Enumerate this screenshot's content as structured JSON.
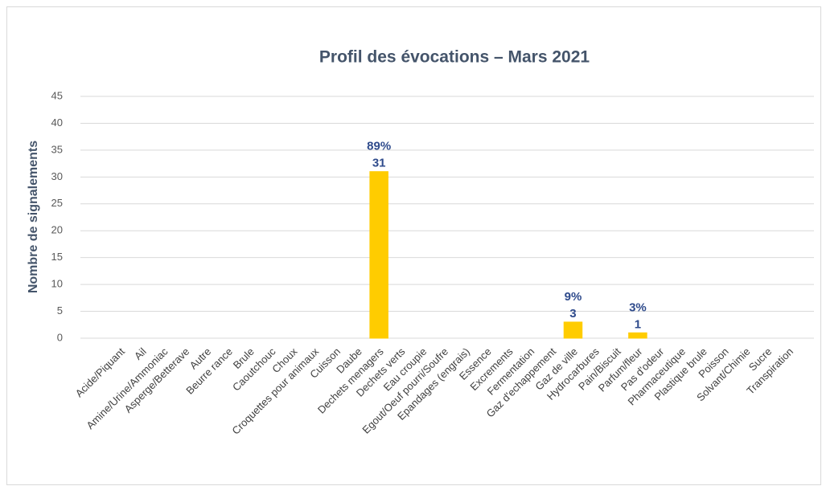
{
  "chart_data": {
    "type": "bar",
    "title": "Profil des évocations – Mars 2021",
    "y_label": "Nombre de signalements",
    "categories": [
      "Acide/Piquant",
      "Ail",
      "Amine/Urine/Ammoniac",
      "Asperge/Betterave",
      "Autre",
      "Beurre rance",
      "Brule",
      "Caoutchouc",
      "Choux",
      "Croquettes pour animaux",
      "Cuisson",
      "Daube",
      "Dechets menagers",
      "Dechets verts",
      "Eau croupie",
      "Egout/Oeuf pourri/Soufre",
      "Epandages (engrais)",
      "Essence",
      "Excrements",
      "Fermentation",
      "Gaz d'echappement",
      "Gaz de ville",
      "Hydrocarbures",
      "Pain/Biscuit",
      "Parfum/fleur",
      "Pas d'odeur",
      "Pharmaceutique",
      "Plastique brule",
      "Poisson",
      "Solvant/Chimie",
      "Sucre",
      "Transpiration"
    ],
    "values": [
      0,
      0,
      0,
      0,
      0,
      0,
      0,
      0,
      0,
      0,
      0,
      0,
      31,
      0,
      0,
      0,
      0,
      0,
      0,
      0,
      0,
      3,
      0,
      0,
      1,
      0,
      0,
      0,
      0,
      0,
      0,
      0
    ],
    "share_labels": [
      null,
      null,
      null,
      null,
      null,
      null,
      null,
      null,
      null,
      null,
      null,
      null,
      "89%",
      null,
      null,
      null,
      null,
      null,
      null,
      null,
      null,
      "9%",
      null,
      null,
      "3%",
      null,
      null,
      null,
      null,
      null,
      null,
      null
    ],
    "color": "#ffcc00",
    "ylim": [
      0,
      45
    ],
    "yticks": [
      0,
      5,
      10,
      15,
      20,
      25,
      30,
      35,
      40,
      45
    ],
    "grid": true
  }
}
